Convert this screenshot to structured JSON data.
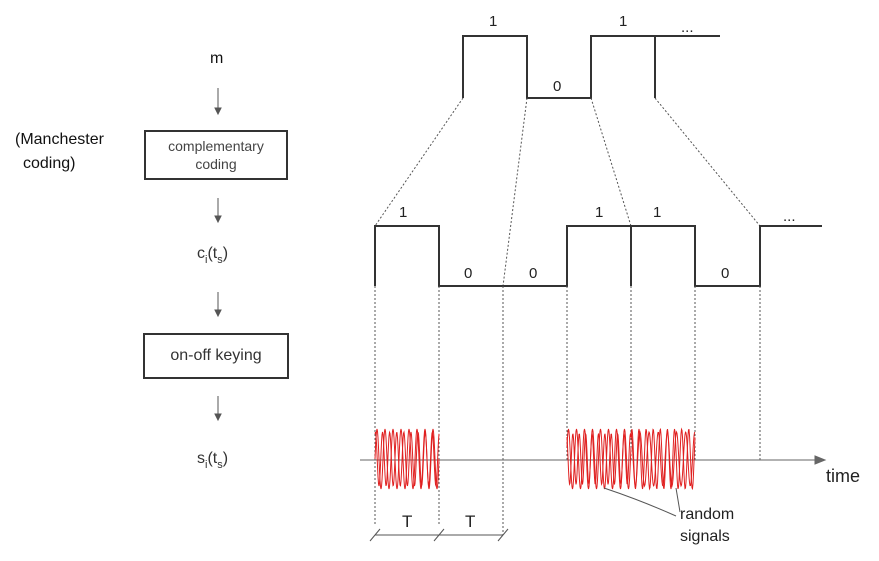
{
  "flow": {
    "m_label": "m",
    "manchester_line1": "(Manchester",
    "manchester_line2": "coding)",
    "complementary_line1": "complementary",
    "complementary_line2": "coding",
    "c_main": "c",
    "c_sub1": "i",
    "c_mid": "(t",
    "c_sub2": "s",
    "c_end": ")",
    "ook_label": "on-off keying",
    "s_main": "s",
    "s_sub1": "i",
    "s_mid": "(t",
    "s_sub2": "s",
    "s_end": ")"
  },
  "top_signal": {
    "bits": [
      "1",
      "0",
      "1"
    ],
    "ellipsis": "..."
  },
  "coded_signal": {
    "bits": [
      "1",
      "0",
      "0",
      "1",
      "1",
      "0"
    ],
    "ellipsis": "..."
  },
  "ook_signal": {
    "time_label": "time",
    "random_line1": "random",
    "random_line2": "signals",
    "period_labels": [
      "T",
      "T"
    ],
    "signal_color": "#e02020"
  }
}
